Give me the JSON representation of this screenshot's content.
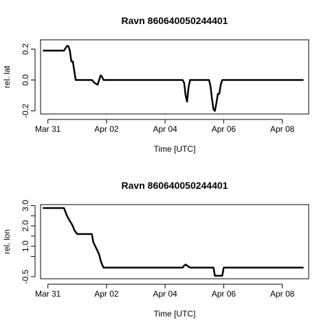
{
  "chart_data": [
    {
      "type": "line",
      "title": "Ravn 860640050244401",
      "xlabel": "Time [UTC]",
      "ylabel": "rel. lat",
      "x_ticks": [
        {
          "label": "Mar 31",
          "value": 0
        },
        {
          "label": "Apr 02",
          "value": 2
        },
        {
          "label": "Apr 04",
          "value": 4
        },
        {
          "label": "Apr 06",
          "value": 6
        },
        {
          "label": "Apr 08",
          "value": 8
        }
      ],
      "y_ticks": [
        {
          "label": "-0.2",
          "value": -0.2
        },
        {
          "label": "0.0",
          "value": 0.0
        },
        {
          "label": "0.2",
          "value": 0.2
        }
      ],
      "xlim": [
        -0.25,
        8.9
      ],
      "ylim": [
        -0.22,
        0.26
      ],
      "grid": false,
      "series": [
        {
          "x": [
            -0.15,
            0.55,
            0.65,
            0.7,
            0.75,
            0.8,
            0.85,
            0.9,
            0.95,
            1.0,
            1.05,
            1.1,
            1.5,
            1.6,
            1.7,
            1.75,
            1.8,
            1.85,
            1.9,
            1.95,
            2.0,
            2.3,
            4.6,
            4.65,
            4.7,
            4.75,
            4.8,
            4.85,
            4.9,
            5.5,
            5.55,
            5.6,
            5.65,
            5.7,
            5.75,
            5.8,
            5.85,
            5.9,
            5.95,
            6.0,
            6.1,
            8.7
          ],
          "y": [
            0.19,
            0.19,
            0.22,
            0.22,
            0.19,
            0.12,
            0.12,
            0.06,
            0.0,
            0.0,
            0.0,
            0.0,
            0.0,
            -0.02,
            -0.03,
            0.0,
            0.03,
            0.02,
            0.0,
            0.0,
            0.0,
            0.0,
            0.0,
            -0.02,
            -0.1,
            -0.14,
            -0.05,
            0.0,
            0.0,
            0.0,
            -0.04,
            -0.12,
            -0.19,
            -0.2,
            -0.15,
            -0.09,
            -0.09,
            -0.03,
            0.0,
            0.0,
            0.0,
            0.0
          ]
        }
      ]
    },
    {
      "type": "line",
      "title": "Ravn 860640050244401",
      "xlabel": "Time [UTC]",
      "ylabel": "rel. lon",
      "x_ticks": [
        {
          "label": "Mar 31",
          "value": 0
        },
        {
          "label": "Apr 02",
          "value": 2
        },
        {
          "label": "Apr 04",
          "value": 4
        },
        {
          "label": "Apr 06",
          "value": 6
        },
        {
          "label": "Apr 08",
          "value": 8
        }
      ],
      "y_ticks": [
        {
          "label": "-0.5",
          "value": -0.5
        },
        {
          "label": "1.0",
          "value": 1.0
        },
        {
          "label": "2.0",
          "value": 2.0
        },
        {
          "label": "3.0",
          "value": 3.0
        }
      ],
      "minor_y_ticks": [
        0.5,
        1.5,
        2.5
      ],
      "xlim": [
        -0.25,
        8.9
      ],
      "ylim": [
        -0.6,
        3.05
      ],
      "grid": false,
      "series": [
        {
          "x": [
            -0.15,
            0.55,
            0.65,
            0.75,
            0.85,
            0.9,
            1.0,
            1.05,
            1.5,
            1.55,
            1.65,
            1.75,
            1.8,
            1.85,
            1.9,
            1.95,
            2.0,
            2.3,
            4.6,
            4.65,
            4.7,
            4.75,
            4.8,
            4.85,
            4.9,
            5.2,
            5.3,
            5.65,
            5.7,
            5.8,
            5.95,
            6.0,
            6.1,
            8.7
          ],
          "y": [
            2.88,
            2.88,
            2.5,
            2.25,
            2.0,
            1.8,
            1.6,
            1.6,
            1.6,
            1.2,
            0.9,
            0.6,
            0.3,
            0.1,
            -0.05,
            -0.05,
            -0.05,
            -0.05,
            -0.05,
            0.05,
            0.1,
            0.05,
            0.0,
            -0.05,
            -0.05,
            -0.05,
            -0.05,
            -0.05,
            -0.45,
            -0.45,
            -0.45,
            -0.05,
            -0.05,
            -0.05
          ]
        }
      ]
    }
  ]
}
